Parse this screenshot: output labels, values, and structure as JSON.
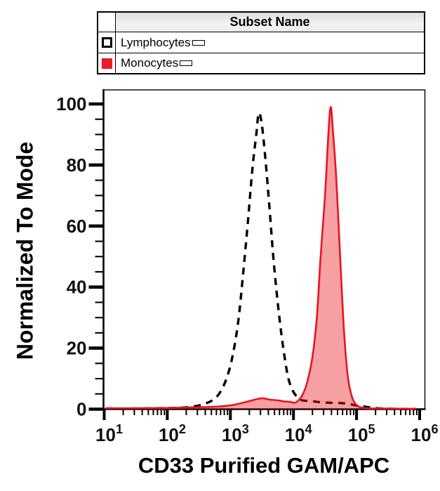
{
  "legend": {
    "header": "Subset Name",
    "entries": [
      {
        "label": "Lymphocytes",
        "swatch_style": "white-with-black-outline",
        "color": "#000000"
      },
      {
        "label": "Monocytes",
        "swatch_style": "solid-filled",
        "color": "#ed1c24"
      }
    ]
  },
  "chart_data": {
    "type": "area",
    "description": "Overlaid flow-cytometry histograms normalized to mode",
    "x_axis": {
      "label": "CD33 Purified GAM/APC",
      "scale": "log10",
      "min": 10,
      "max": 1000000,
      "tick_base": "10",
      "tick_exponents": [
        1,
        2,
        3,
        4,
        5,
        6
      ]
    },
    "y_axis": {
      "label": "Normalized To Mode",
      "min": 0,
      "max": 105,
      "major_ticks": [
        0,
        20,
        40,
        60,
        80,
        100
      ],
      "minor_tick_step": 5
    },
    "series": [
      {
        "name": "Lymphocytes",
        "line_style": "dashed",
        "color": "#000000",
        "fill": "none",
        "peak": {
          "x": 2800,
          "y_pct_of_mode": 97
        },
        "points_log10x_y": [
          [
            1.02,
            0.2
          ],
          [
            1.4,
            0.2
          ],
          [
            1.8,
            0.3
          ],
          [
            2.1,
            0.4
          ],
          [
            2.3,
            0.6
          ],
          [
            2.45,
            1.0
          ],
          [
            2.6,
            1.8
          ],
          [
            2.72,
            3.0
          ],
          [
            2.82,
            5.0
          ],
          [
            2.92,
            9.0
          ],
          [
            3.02,
            16
          ],
          [
            3.12,
            28
          ],
          [
            3.2,
            44
          ],
          [
            3.28,
            62
          ],
          [
            3.35,
            79
          ],
          [
            3.41,
            90
          ],
          [
            3.45,
            97
          ],
          [
            3.5,
            93
          ],
          [
            3.56,
            81
          ],
          [
            3.62,
            66
          ],
          [
            3.68,
            50
          ],
          [
            3.74,
            37
          ],
          [
            3.8,
            26
          ],
          [
            3.86,
            17
          ],
          [
            3.92,
            10
          ],
          [
            3.99,
            6.0
          ],
          [
            4.06,
            4.0
          ],
          [
            4.14,
            2.9
          ],
          [
            4.3,
            2.6
          ],
          [
            4.45,
            2.2
          ],
          [
            4.6,
            2.1
          ],
          [
            4.75,
            2.0
          ],
          [
            4.88,
            1.7
          ],
          [
            5.0,
            1.2
          ],
          [
            5.08,
            1.0
          ],
          [
            5.2,
            0.6
          ],
          [
            5.35,
            0.25
          ],
          [
            5.6,
            0.1
          ],
          [
            5.95,
            0.05
          ]
        ]
      },
      {
        "name": "Monocytes",
        "line_style": "solid",
        "color": "#e8141f",
        "fill": "#ed1c24",
        "fill_opacity": 0.42,
        "peak": {
          "x": 39000,
          "y_pct_of_mode": 99
        },
        "points_log10x_y": [
          [
            1.02,
            0.3
          ],
          [
            1.5,
            0.3
          ],
          [
            2.0,
            0.4
          ],
          [
            2.4,
            0.6
          ],
          [
            2.75,
            0.8
          ],
          [
            2.95,
            1.1
          ],
          [
            3.1,
            1.6
          ],
          [
            3.25,
            2.4
          ],
          [
            3.4,
            3.2
          ],
          [
            3.5,
            3.6
          ],
          [
            3.56,
            3.4
          ],
          [
            3.63,
            3.1
          ],
          [
            3.7,
            3.0
          ],
          [
            3.78,
            2.8
          ],
          [
            3.86,
            2.5
          ],
          [
            3.95,
            2.4
          ],
          [
            4.02,
            2.1
          ],
          [
            4.08,
            2.9
          ],
          [
            4.15,
            5.0
          ],
          [
            4.22,
            9.0
          ],
          [
            4.3,
            17
          ],
          [
            4.37,
            30
          ],
          [
            4.43,
            50
          ],
          [
            4.5,
            70
          ],
          [
            4.55,
            89
          ],
          [
            4.59,
            99
          ],
          [
            4.63,
            90
          ],
          [
            4.68,
            75
          ],
          [
            4.74,
            50
          ],
          [
            4.8,
            26
          ],
          [
            4.86,
            11
          ],
          [
            4.92,
            4.5
          ],
          [
            4.98,
            1.8
          ],
          [
            5.05,
            0.7
          ],
          [
            5.15,
            0.3
          ],
          [
            5.4,
            0.2
          ],
          [
            5.95,
            0.1
          ]
        ]
      }
    ]
  }
}
